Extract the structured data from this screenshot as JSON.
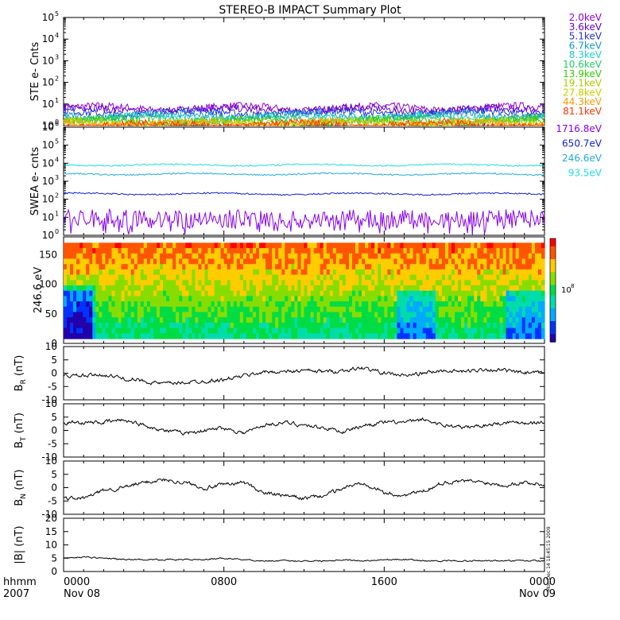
{
  "title": "STEREO-B IMPACT Summary Plot",
  "time_axis": {
    "corner_labels": [
      "hhmm",
      "2007"
    ],
    "ticks": [
      {
        "t": 0,
        "hhmm": "0000",
        "date": "Nov 08"
      },
      {
        "t": 8,
        "hhmm": "0800",
        "date": ""
      },
      {
        "t": 16,
        "hhmm": "1600",
        "date": ""
      },
      {
        "t": 24,
        "hhmm": "0000",
        "date": "Nov 09"
      }
    ],
    "range_hours": [
      0,
      24
    ]
  },
  "footer_stamp": "Mon Dec 14 18:45:15 2009",
  "colors": {
    "ste": [
      "#9900cc",
      "#6600cc",
      "#2233dd",
      "#1199cc",
      "#22cccc",
      "#22cc66",
      "#33cc00",
      "#aacc00",
      "#cccc00",
      "#ff9900",
      "#ff3300"
    ],
    "swea": [
      "#8800ee",
      "#1122cc",
      "#22aadd",
      "#22dddd"
    ],
    "line": "#000000"
  },
  "chart_data": [
    {
      "type": "line",
      "id": "ste",
      "ylabel": "STE e- Cnts",
      "yscale": "log",
      "ylim": [
        1,
        100000
      ],
      "ytick_labels": [
        "10",
        "10",
        "10",
        "10",
        "10",
        "10"
      ],
      "ytick_exponents": [
        "0",
        "1",
        "2",
        "3",
        "4",
        "5"
      ],
      "series": [
        {
          "name": "2.0keV",
          "level": 6.5
        },
        {
          "name": "3.6keV",
          "level": 5.5
        },
        {
          "name": "5.1keV",
          "level": 4.0
        },
        {
          "name": "6.7keV",
          "level": 3.0
        },
        {
          "name": "8.3keV",
          "level": 2.5
        },
        {
          "name": "10.6keV",
          "level": 2.0
        },
        {
          "name": "13.9keV",
          "level": 1.6
        },
        {
          "name": "19.1keV",
          "level": 1.4
        },
        {
          "name": "27.8keV",
          "level": 1.3
        },
        {
          "name": "44.3keV",
          "level": 1.2
        },
        {
          "name": "81.1keV",
          "level": 1.1
        }
      ]
    },
    {
      "type": "line",
      "id": "swea",
      "ylabel": "SWEA e- cnts",
      "yscale": "log",
      "ylim": [
        1,
        1000000
      ],
      "ytick_labels": [
        "10",
        "10",
        "10",
        "10",
        "10",
        "10",
        "10"
      ],
      "ytick_exponents": [
        "0",
        "1",
        "2",
        "3",
        "4",
        "5",
        "6"
      ],
      "series": [
        {
          "name": "1716.8eV",
          "level": 8
        },
        {
          "name": "650.7eV",
          "level": 200
        },
        {
          "name": "246.6eV",
          "level": 2500
        },
        {
          "name": "93.5eV",
          "level": 8000
        }
      ]
    },
    {
      "type": "heatmap",
      "id": "pad",
      "ylabel": "246.6 eV",
      "ylim": [
        0,
        180
      ],
      "yticks": [
        0,
        50,
        100,
        150
      ],
      "colorbar_label": "10",
      "colorbar_exponent": "8"
    },
    {
      "type": "line",
      "id": "br",
      "ylabel": "B",
      "ylabel_sub": "R",
      "ylabel_unit": " (nT)",
      "ylim": [
        -10,
        10
      ],
      "yticks": [
        -10,
        -5,
        0,
        5,
        10
      ],
      "x": [
        0,
        1,
        2,
        3,
        4,
        5,
        6,
        7,
        8,
        9,
        10,
        11,
        12,
        13,
        14,
        15,
        16,
        17,
        18,
        19,
        20,
        21,
        22,
        23,
        24
      ],
      "y": [
        -1,
        -1,
        -0.5,
        -2,
        -3,
        -4,
        -3.5,
        -3,
        -2.5,
        -1,
        0.5,
        0.5,
        1,
        0.5,
        1,
        2,
        0,
        -1,
        0,
        1,
        0.5,
        1.5,
        1,
        0,
        0
      ]
    },
    {
      "type": "line",
      "id": "bt",
      "ylabel": "B",
      "ylabel_sub": "T",
      "ylabel_unit": " (nT)",
      "ylim": [
        -10,
        10
      ],
      "yticks": [
        -10,
        -5,
        0,
        5,
        10
      ],
      "x": [
        0,
        1,
        2,
        3,
        4,
        5,
        6,
        7,
        8,
        9,
        10,
        11,
        12,
        13,
        14,
        15,
        16,
        17,
        18,
        19,
        20,
        21,
        22,
        23,
        24
      ],
      "y": [
        3,
        3,
        3,
        4,
        2,
        0,
        -1,
        0,
        1,
        -1,
        2,
        3,
        2,
        1,
        -0.5,
        2,
        3,
        3,
        4,
        2,
        1,
        2,
        3,
        3,
        3
      ]
    },
    {
      "type": "line",
      "id": "bn",
      "ylabel": "B",
      "ylabel_sub": "N",
      "ylabel_unit": " (nT)",
      "ylim": [
        -10,
        10
      ],
      "yticks": [
        -10,
        -5,
        0,
        5,
        10
      ],
      "x": [
        0,
        1,
        2,
        3,
        4,
        5,
        6,
        7,
        8,
        9,
        10,
        11,
        12,
        13,
        14,
        15,
        16,
        17,
        18,
        19,
        20,
        21,
        22,
        23,
        24
      ],
      "y": [
        -4,
        -4,
        -1,
        0,
        2,
        3,
        2,
        0,
        1,
        2,
        -2,
        -3,
        -4,
        -3,
        0,
        2,
        -2,
        -3,
        -1,
        2,
        2.5,
        2,
        1,
        2,
        1
      ]
    },
    {
      "type": "line",
      "id": "bmag",
      "ylabel": "|B| (nT)",
      "ylim": [
        0,
        20
      ],
      "yticks": [
        0,
        5,
        10,
        15,
        20
      ],
      "x": [
        0,
        1,
        2,
        3,
        4,
        5,
        6,
        7,
        8,
        9,
        10,
        11,
        12,
        13,
        14,
        15,
        16,
        17,
        18,
        19,
        20,
        21,
        22,
        23,
        24
      ],
      "y": [
        5,
        5.5,
        5,
        4.5,
        4.5,
        4.5,
        4.5,
        4.5,
        5,
        4.5,
        4,
        4,
        4,
        4,
        4.5,
        4,
        4.5,
        4.5,
        4,
        4,
        4,
        4,
        4,
        4,
        4
      ]
    }
  ]
}
